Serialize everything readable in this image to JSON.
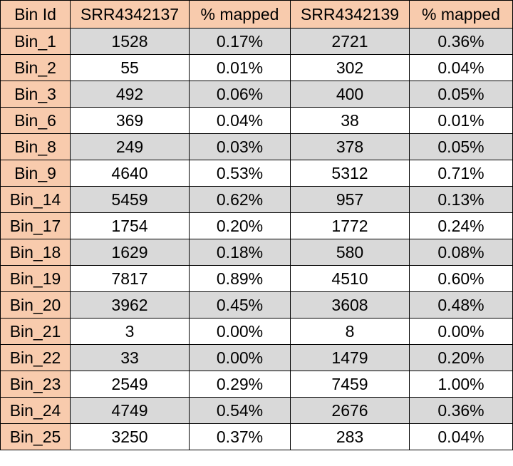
{
  "table": {
    "headers": [
      "Bin Id",
      "SRR4342137",
      "% mapped",
      "SRR4342139",
      "% mapped"
    ],
    "rows": [
      [
        "Bin_1",
        "1528",
        "0.17%",
        "2721",
        "0.36%"
      ],
      [
        "Bin_2",
        "55",
        "0.01%",
        "302",
        "0.04%"
      ],
      [
        "Bin_3",
        "492",
        "0.06%",
        "400",
        "0.05%"
      ],
      [
        "Bin_6",
        "369",
        "0.04%",
        "38",
        "0.01%"
      ],
      [
        "Bin_8",
        "249",
        "0.03%",
        "378",
        "0.05%"
      ],
      [
        "Bin_9",
        "4640",
        "0.53%",
        "5312",
        "0.71%"
      ],
      [
        "Bin_14",
        "5459",
        "0.62%",
        "957",
        "0.13%"
      ],
      [
        "Bin_17",
        "1754",
        "0.20%",
        "1772",
        "0.24%"
      ],
      [
        "Bin_18",
        "1629",
        "0.18%",
        "580",
        "0.08%"
      ],
      [
        "Bin_19",
        "7817",
        "0.89%",
        "4510",
        "0.60%"
      ],
      [
        "Bin_20",
        "3962",
        "0.45%",
        "3608",
        "0.48%"
      ],
      [
        "Bin_21",
        "3",
        "0.00%",
        "8",
        "0.00%"
      ],
      [
        "Bin_22",
        "33",
        "0.00%",
        "1479",
        "0.20%"
      ],
      [
        "Bin_23",
        "2549",
        "0.29%",
        "7459",
        "1.00%"
      ],
      [
        "Bin_24",
        "4749",
        "0.54%",
        "2676",
        "0.36%"
      ],
      [
        "Bin_25",
        "3250",
        "0.37%",
        "283",
        "0.04%"
      ]
    ]
  },
  "colors": {
    "header_bg": "#f8cbad",
    "stripe_bg": "#d9d9d9",
    "plain_bg": "#ffffff",
    "border": "#000000"
  }
}
